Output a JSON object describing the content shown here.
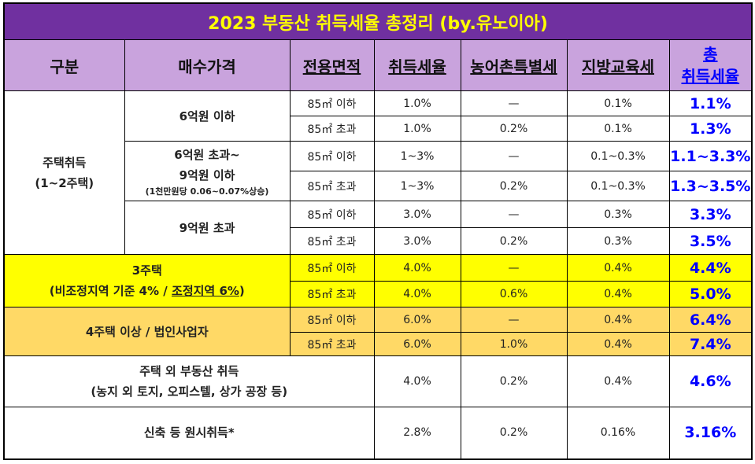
{
  "title": "2023 부동산 취득세율 총정리 (by.유노이아)",
  "header": [
    "구분",
    "매수가격",
    "전용면적",
    "취득세율",
    "농어촌특별세",
    "지방교육세"
  ],
  "header_total": [
    "총",
    "취득세율"
  ],
  "groups": [
    {
      "label": [
        "주택취득",
        "(1~2주택)"
      ],
      "prices": [
        {
          "label": [
            "6억원 이하"
          ],
          "rows": [
            {
              "area": "85㎡ 이하",
              "rate": "1.0%",
              "rural": "—",
              "edu": "0.1%",
              "total": "1.1%"
            },
            {
              "area": "85㎡ 초과",
              "rate": "1.0%",
              "rural": "0.2%",
              "edu": "0.1%",
              "total": "1.3%"
            }
          ]
        },
        {
          "label": [
            "6억원 초과~",
            "9억원 이하",
            "(1천만원당 0.06~0.07%상승)"
          ],
          "rows": [
            {
              "area": "85㎡ 이하",
              "rate": "1~3%",
              "rural": "—",
              "edu": "0.1~0.3%",
              "total": "1.1~3.3%"
            },
            {
              "area": "85㎡ 초과",
              "rate": "1~3%",
              "rural": "0.2%",
              "edu": "0.1~0.3%",
              "total": "1.3~3.5%"
            }
          ]
        },
        {
          "label": [
            "9억원 초과"
          ],
          "rows": [
            {
              "area": "85㎡ 이하",
              "rate": "3.0%",
              "rural": "—",
              "edu": "0.3%",
              "total": "3.3%"
            },
            {
              "area": "85㎡ 초과",
              "rate": "3.0%",
              "rural": "0.2%",
              "edu": "0.3%",
              "total": "3.5%"
            }
          ]
        }
      ]
    },
    {
      "label": [
        "3주택",
        "(비조정지역 기준 4% / ",
        "조정지역 6%",
        ")"
      ],
      "rows": [
        {
          "area": "85㎡ 이하",
          "rate": "4.0%",
          "rural": "—",
          "edu": "0.4%",
          "total": "4.4%"
        },
        {
          "area": "85㎡ 초과",
          "rate": "4.0%",
          "rural": "0.6%",
          "edu": "0.4%",
          "total": "5.0%"
        }
      ]
    },
    {
      "label": [
        "4주택 이상 / 법인사업자"
      ],
      "rows": [
        {
          "area": "85㎡ 이하",
          "rate": "6.0%",
          "rural": "—",
          "edu": "0.4%",
          "total": "6.4%"
        },
        {
          "area": "85㎡ 초과",
          "rate": "6.0%",
          "rural": "1.0%",
          "edu": "0.4%",
          "total": "7.4%"
        }
      ]
    },
    {
      "label": [
        "주택 외 부동산 취득",
        "(농지 외 토지, 오피스텔, 상가 공장 등)"
      ],
      "rows": [
        {
          "rate": "4.0%",
          "rural": "0.2%",
          "edu": "0.4%",
          "total": "4.6%"
        }
      ]
    },
    {
      "label": [
        "신축 등 원시취득*"
      ],
      "rows": [
        {
          "rate": "2.8%",
          "rural": "0.2%",
          "edu": "0.16%",
          "total": "3.16%"
        }
      ]
    }
  ]
}
